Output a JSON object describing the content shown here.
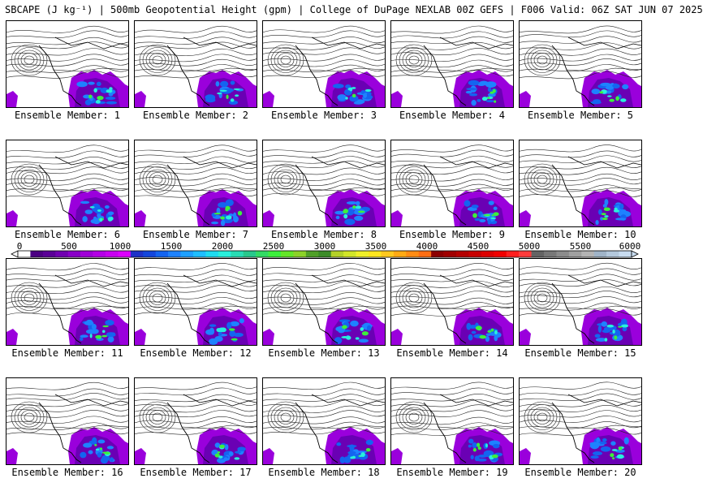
{
  "title": "SBCAPE (J kg⁻¹) | 500mb Geopotential Height (gpm) | College of DuPage NEXLAB 00Z GEFS | F006 Valid: 06Z SAT JUN 07 2025",
  "panels": [
    {
      "label": "Ensemble Member: 1"
    },
    {
      "label": "Ensemble Member: 2"
    },
    {
      "label": "Ensemble Member: 3"
    },
    {
      "label": "Ensemble Member: 4"
    },
    {
      "label": "Ensemble Member: 5"
    },
    {
      "label": "Ensemble Member: 6"
    },
    {
      "label": "Ensemble Member: 7"
    },
    {
      "label": "Ensemble Member: 8"
    },
    {
      "label": "Ensemble Member: 9"
    },
    {
      "label": "Ensemble Member: 10"
    },
    {
      "label": "Ensemble Member: 11"
    },
    {
      "label": "Ensemble Member: 12"
    },
    {
      "label": "Ensemble Member: 13"
    },
    {
      "label": "Ensemble Member: 14"
    },
    {
      "label": "Ensemble Member: 15"
    },
    {
      "label": "Ensemble Member: 16"
    },
    {
      "label": "Ensemble Member: 17"
    },
    {
      "label": "Ensemble Member: 18"
    },
    {
      "label": "Ensemble Member: 19"
    },
    {
      "label": "Ensemble Member: 20"
    }
  ],
  "colorbar": {
    "labels": [
      "0",
      "500",
      "1000",
      "1500",
      "2000",
      "2500",
      "3000",
      "3500",
      "4000",
      "4500",
      "5000",
      "5500",
      "6000"
    ],
    "colors": [
      "#ffffff",
      "#4b0082",
      "#5a0096",
      "#7000b0",
      "#8a00c8",
      "#a000d8",
      "#b400e6",
      "#c800f0",
      "#dc00ff",
      "#1e32c8",
      "#1446dc",
      "#1464f0",
      "#1e82ff",
      "#1ea0ff",
      "#1ebeff",
      "#1edcf0",
      "#28f0dc",
      "#28dcb4",
      "#28c88c",
      "#32dc64",
      "#3cf03c",
      "#64e628",
      "#8cd228",
      "#50a028",
      "#3c8c28",
      "#b4d228",
      "#d2e628",
      "#f0f028",
      "#ffe61e",
      "#ffc81e",
      "#ffaa14",
      "#ff8c14",
      "#ff6e14",
      "#8c0000",
      "#a00000",
      "#b40000",
      "#c80000",
      "#dc0000",
      "#f00000",
      "#ff1e1e",
      "#ff3c3c",
      "#646464",
      "#787878",
      "#8c8c8c",
      "#a0a0a0",
      "#b4b4b4",
      "#a0b4c8",
      "#b4c8dc",
      "#c8dcf0"
    ]
  }
}
